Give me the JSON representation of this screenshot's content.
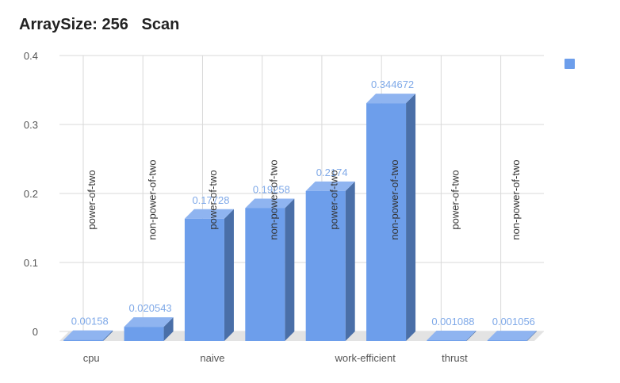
{
  "chart_data": {
    "type": "bar",
    "title": "ArraySize: 256   Scan",
    "xlabel": "",
    "ylabel": "",
    "ylim": [
      0,
      0.4
    ],
    "yticks": [
      "0",
      "0.1",
      "0.2",
      "0.3",
      "0.4"
    ],
    "grid": true,
    "three_d": true,
    "legend": {
      "position": "top-right",
      "entries": [
        ""
      ]
    },
    "group_labels": [
      "cpu",
      "naive",
      "work-efficient",
      "thrust"
    ],
    "categories": [
      "power-of-two",
      "non-power-of-two",
      "power-of-two",
      "non-power-of-two",
      "power-of-two",
      "non-power-of-two",
      "power-of-two",
      "non-power-of-two"
    ],
    "values": [
      0.00158,
      0.020543,
      0.17728,
      0.19258,
      0.2174,
      0.344672,
      0.001088,
      0.001056
    ],
    "data_labels": [
      "0.00158",
      "0.020543",
      "0.17728",
      "0.19258",
      "0.2174",
      "0.344672",
      "0.001088",
      "0.001056"
    ]
  },
  "colors": {
    "bar_front": "#6d9eeb",
    "bar_side": "#4a6fa8",
    "bar_top": "#8fb4f0",
    "data_label": "#7fa9e8",
    "grid": "#d9d9d9",
    "axis_text": "#555555",
    "floor": "#e3e3e3"
  }
}
